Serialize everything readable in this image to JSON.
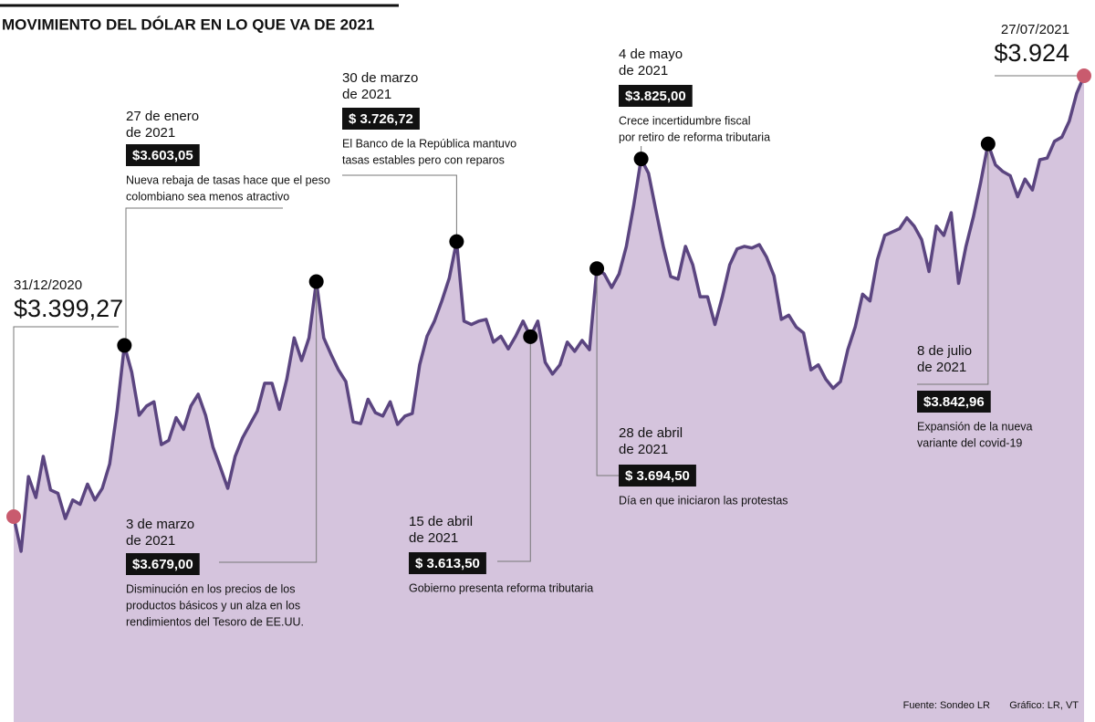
{
  "chart_data": {
    "type": "area",
    "title": "MOVIMIENTO DEL DÓLAR EN LO QUE VA DE 2021",
    "color": "#5b4580",
    "fill": "#d5c4dd",
    "values": [
      3399.27,
      3358,
      3447,
      3422,
      3471,
      3431,
      3427,
      3397,
      3419,
      3414,
      3438,
      3419,
      3433,
      3462,
      3525,
      3603.05,
      3571,
      3520,
      3531,
      3536,
      3485,
      3490,
      3517,
      3503,
      3531,
      3545,
      3520,
      3482,
      3458,
      3433,
      3471,
      3493,
      3509,
      3525,
      3558,
      3558,
      3527,
      3563,
      3612,
      3585,
      3612,
      3679.0,
      3612,
      3592,
      3574,
      3560,
      3512,
      3510,
      3539,
      3523,
      3519,
      3536,
      3509,
      3519,
      3522,
      3580,
      3614,
      3632,
      3656,
      3683,
      3726.72,
      3632,
      3628,
      3632,
      3634,
      3607,
      3614,
      3599,
      3614,
      3632,
      3613.5,
      3632,
      3583,
      3569,
      3580,
      3607,
      3596,
      3609,
      3598,
      3694.5,
      3688,
      3672,
      3688,
      3721,
      3770,
      3825.0,
      3808,
      3764,
      3721,
      3685,
      3682,
      3721,
      3699,
      3661,
      3661,
      3628,
      3661,
      3699,
      3718,
      3721,
      3719,
      3723,
      3708,
      3686,
      3634,
      3639,
      3625,
      3618,
      3574,
      3580,
      3563,
      3552,
      3560,
      3598,
      3625,
      3664,
      3656,
      3705,
      3734,
      3738,
      3742,
      3755,
      3745,
      3729,
      3691,
      3745,
      3734,
      3761,
      3677,
      3721,
      3756,
      3797,
      3842.96,
      3818,
      3810,
      3805,
      3780,
      3801,
      3788,
      3824,
      3826,
      3846,
      3851,
      3870,
      3903,
      3924
    ],
    "annotations": [
      {
        "date": [
          "31/12/2020"
        ],
        "value": 3399.27,
        "value_label": "$3.399,27",
        "note": []
      },
      {
        "date": [
          "27 de enero",
          "de 2021"
        ],
        "value": 3603.05,
        "value_label": "$3.603,05",
        "note": [
          "Nueva rebaja de tasas hace que el peso",
          "colombiano sea menos atractivo"
        ]
      },
      {
        "date": [
          "3 de marzo",
          "de 2021"
        ],
        "value": 3679.0,
        "value_label": "$3.679,00",
        "note": [
          "Disminución en los precios de los",
          "productos básicos y un alza en los",
          "rendimientos del Tesoro de EE.UU."
        ]
      },
      {
        "date": [
          "30 de marzo",
          "de 2021"
        ],
        "value": 3726.72,
        "value_label": "$ 3.726,72",
        "note": [
          "El Banco de la República mantuvo",
          "tasas estables pero con reparos"
        ]
      },
      {
        "date": [
          "15 de abril",
          "de 2021"
        ],
        "value": 3613.5,
        "value_label": "$ 3.613,50",
        "note": [
          "Gobierno presenta reforma tributaria"
        ]
      },
      {
        "date": [
          "28 de abril",
          "de 2021"
        ],
        "value": 3694.5,
        "value_label": "$ 3.694,50",
        "note": [
          "Día en que iniciaron las protestas"
        ]
      },
      {
        "date": [
          "4 de mayo",
          "de 2021"
        ],
        "value": 3825.0,
        "value_label": "$3.825,00",
        "note": [
          "Crece incertidumbre fiscal",
          "por retiro de reforma tributaria"
        ]
      },
      {
        "date": [
          "8 de julio",
          "de 2021"
        ],
        "value": 3842.96,
        "value_label": "$3.842,96",
        "note": [
          "Expansión de la nueva",
          "variante del covid-19"
        ]
      },
      {
        "date": [
          "27/07/2021"
        ],
        "value": 3924,
        "value_label": "$3.924",
        "note": []
      }
    ],
    "source": [
      "Fuente: Sondeo LR",
      "Gráfico: LR, VT"
    ]
  }
}
